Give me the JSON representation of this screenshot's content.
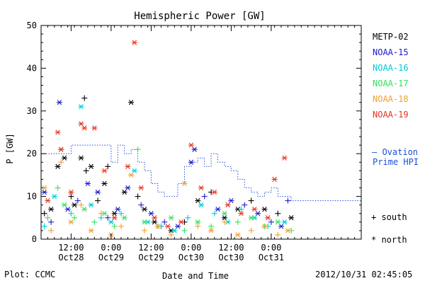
{
  "chart_data": {
    "type": "scatter",
    "title": "Hemispheric Power [GW]",
    "ylabel": "P [GW]",
    "xlabel": "Date and Time",
    "ylim": [
      0,
      50
    ],
    "yticks": [
      0,
      10,
      20,
      30,
      40,
      50
    ],
    "xlim": [
      "2012-10-27T03:00",
      "2012-10-31T03:00"
    ],
    "xticks": [
      {
        "time": "2012-10-27T12:00",
        "line1": "12:00",
        "line2": "Oct28"
      },
      {
        "time": "2012-10-28T00:00",
        "line1": "0:00",
        "line2": "Oct29"
      },
      {
        "time": "2012-10-28T12:00",
        "line1": "12:00",
        "line2": "Oct29"
      },
      {
        "time": "2012-10-29T00:00",
        "line1": "0:00",
        "line2": "Oct30"
      },
      {
        "time": "2012-10-29T12:00",
        "line1": "12:00",
        "line2": "Oct30"
      },
      {
        "time": "2012-10-30T00:00",
        "line1": "0:00",
        "line2": "Oct31"
      }
    ],
    "series": [
      {
        "name": "METP-02",
        "color": "#000000",
        "points": [
          [
            "2012-10-27T04:00",
            6,
            "+"
          ],
          [
            "2012-10-27T06:00",
            7,
            "*"
          ],
          [
            "2012-10-27T08:00",
            17,
            "*"
          ],
          [
            "2012-10-27T10:00",
            19,
            "*"
          ],
          [
            "2012-10-27T12:00",
            10,
            "+"
          ],
          [
            "2012-10-27T13:00",
            8,
            "*"
          ],
          [
            "2012-10-27T15:00",
            19,
            "*"
          ],
          [
            "2012-10-27T16:00",
            33,
            "+"
          ],
          [
            "2012-10-27T16:30",
            16,
            "+"
          ],
          [
            "2012-10-27T18:00",
            17,
            "*"
          ],
          [
            "2012-10-27T20:00",
            9,
            "+"
          ],
          [
            "2012-10-27T22:00",
            13,
            "*"
          ],
          [
            "2012-10-27T23:00",
            17,
            "+"
          ],
          [
            "2012-10-28T01:00",
            6,
            "*"
          ],
          [
            "2012-10-28T04:00",
            11,
            "*"
          ],
          [
            "2012-10-28T06:00",
            32,
            "*"
          ],
          [
            "2012-10-28T08:00",
            10,
            "+"
          ],
          [
            "2012-10-28T10:00",
            7,
            "*"
          ],
          [
            "2012-10-28T13:00",
            4,
            "*"
          ],
          [
            "2012-10-28T15:00",
            3,
            "+"
          ],
          [
            "2012-10-28T18:00",
            2,
            "*"
          ],
          [
            "2012-10-28T22:00",
            4,
            "+"
          ],
          [
            "2012-10-29T02:00",
            9,
            "*"
          ],
          [
            "2012-10-29T06:00",
            11,
            "+"
          ],
          [
            "2012-10-29T10:00",
            5,
            "*"
          ],
          [
            "2012-10-29T14:00",
            7,
            "*"
          ],
          [
            "2012-10-29T18:00",
            9,
            "+"
          ],
          [
            "2012-10-29T22:00",
            7,
            "*"
          ],
          [
            "2012-10-30T02:00",
            6,
            "+"
          ],
          [
            "2012-10-30T06:00",
            5,
            "*"
          ]
        ]
      },
      {
        "name": "NOAA-15",
        "color": "#1a1acd",
        "points": [
          [
            "2012-10-27T04:00",
            11,
            "*"
          ],
          [
            "2012-10-27T06:00",
            4,
            "+"
          ],
          [
            "2012-10-27T08:30",
            32,
            "*"
          ],
          [
            "2012-10-27T11:00",
            7,
            "*"
          ],
          [
            "2012-10-27T14:00",
            9,
            "+"
          ],
          [
            "2012-10-27T17:00",
            13,
            "*"
          ],
          [
            "2012-10-27T20:00",
            11,
            "*"
          ],
          [
            "2012-10-27T23:00",
            5,
            "+"
          ],
          [
            "2012-10-28T02:00",
            7,
            "*"
          ],
          [
            "2012-10-28T05:00",
            12,
            "*"
          ],
          [
            "2012-10-28T09:00",
            8,
            "+"
          ],
          [
            "2012-10-28T12:00",
            6,
            "*"
          ],
          [
            "2012-10-28T16:00",
            4,
            "+"
          ],
          [
            "2012-10-28T20:00",
            3,
            "*"
          ],
          [
            "2012-10-29T00:00",
            18,
            "*"
          ],
          [
            "2012-10-29T01:00",
            21,
            "*"
          ],
          [
            "2012-10-29T04:00",
            10,
            "+"
          ],
          [
            "2012-10-29T08:00",
            7,
            "*"
          ],
          [
            "2012-10-29T12:00",
            9,
            "*"
          ],
          [
            "2012-10-29T16:00",
            8,
            "+"
          ],
          [
            "2012-10-29T20:00",
            6,
            "*"
          ],
          [
            "2012-10-30T00:00",
            4,
            "+"
          ],
          [
            "2012-10-30T03:00",
            3,
            "*"
          ],
          [
            "2012-10-30T05:00",
            9,
            "+"
          ]
        ]
      },
      {
        "name": "NOAA-16",
        "color": "#00c8d8",
        "points": [
          [
            "2012-10-27T04:00",
            3,
            "+"
          ],
          [
            "2012-10-27T07:00",
            10,
            "*"
          ],
          [
            "2012-10-27T09:00",
            21,
            "*"
          ],
          [
            "2012-10-27T12:00",
            6,
            "+"
          ],
          [
            "2012-10-27T15:00",
            31,
            "*"
          ],
          [
            "2012-10-27T18:00",
            8,
            "*"
          ],
          [
            "2012-10-27T21:00",
            5,
            "+"
          ],
          [
            "2012-10-28T00:00",
            4,
            "*"
          ],
          [
            "2012-10-28T03:00",
            6,
            "+"
          ],
          [
            "2012-10-28T07:00",
            16,
            "*"
          ],
          [
            "2012-10-28T11:00",
            4,
            "*"
          ],
          [
            "2012-10-28T15:00",
            3,
            "+"
          ],
          [
            "2012-10-28T19:00",
            2,
            "*"
          ],
          [
            "2012-10-28T23:00",
            5,
            "+"
          ],
          [
            "2012-10-29T03:00",
            8,
            "*"
          ],
          [
            "2012-10-29T07:00",
            6,
            "+"
          ],
          [
            "2012-10-29T11:00",
            4,
            "*"
          ],
          [
            "2012-10-29T15:00",
            7,
            "+"
          ],
          [
            "2012-10-29T19:00",
            5,
            "*"
          ],
          [
            "2012-10-29T23:00",
            3,
            "+"
          ],
          [
            "2012-10-30T04:00",
            4,
            "*"
          ]
        ]
      },
      {
        "name": "NOAA-17",
        "color": "#33e05a",
        "points": [
          [
            "2012-10-27T05:00",
            5,
            "+"
          ],
          [
            "2012-10-27T08:00",
            12,
            "+"
          ],
          [
            "2012-10-27T10:00",
            8,
            "*"
          ],
          [
            "2012-10-27T13:00",
            5,
            "+"
          ],
          [
            "2012-10-27T16:00",
            7,
            "*"
          ],
          [
            "2012-10-27T19:00",
            4,
            "+"
          ],
          [
            "2012-10-27T22:00",
            6,
            "*"
          ],
          [
            "2012-10-28T01:00",
            3,
            "+"
          ],
          [
            "2012-10-28T04:00",
            5,
            "*"
          ],
          [
            "2012-10-28T08:00",
            21,
            "+"
          ],
          [
            "2012-10-28T10:00",
            4,
            "*"
          ],
          [
            "2012-10-28T14:00",
            3,
            "+"
          ],
          [
            "2012-10-28T18:00",
            5,
            "*"
          ],
          [
            "2012-10-28T22:00",
            2,
            "+"
          ],
          [
            "2012-10-29T02:00",
            4,
            "*"
          ],
          [
            "2012-10-29T06:00",
            3,
            "+"
          ],
          [
            "2012-10-29T10:00",
            6,
            "*"
          ],
          [
            "2012-10-29T14:00",
            4,
            "+"
          ],
          [
            "2012-10-29T18:00",
            5,
            "*"
          ],
          [
            "2012-10-29T22:00",
            3,
            "+"
          ],
          [
            "2012-10-30T02:00",
            4,
            "*"
          ],
          [
            "2012-10-30T06:00",
            2,
            "+"
          ]
        ]
      },
      {
        "name": "NOAA-18",
        "color": "#f0a030",
        "points": [
          [
            "2012-10-27T04:00",
            12,
            "*"
          ],
          [
            "2012-10-27T06:00",
            2,
            "+"
          ],
          [
            "2012-10-27T09:00",
            18,
            "+"
          ],
          [
            "2012-10-27T12:00",
            4,
            "*"
          ],
          [
            "2012-10-27T15:00",
            8,
            "+"
          ],
          [
            "2012-10-27T18:00",
            2,
            "*"
          ],
          [
            "2012-10-27T21:00",
            6,
            "+"
          ],
          [
            "2012-10-28T00:00",
            1,
            "*"
          ],
          [
            "2012-10-28T03:00",
            3,
            "+"
          ],
          [
            "2012-10-28T06:00",
            15,
            "*"
          ],
          [
            "2012-10-28T10:00",
            2,
            "+"
          ],
          [
            "2012-10-28T14:00",
            3,
            "*"
          ],
          [
            "2012-10-28T18:00",
            1,
            "+"
          ],
          [
            "2012-10-28T22:00",
            13,
            "*"
          ],
          [
            "2012-10-29T02:00",
            3,
            "+"
          ],
          [
            "2012-10-29T06:00",
            2,
            "*"
          ],
          [
            "2012-10-29T10:00",
            4,
            "+"
          ],
          [
            "2012-10-29T14:00",
            1,
            "*"
          ],
          [
            "2012-10-29T18:00",
            2,
            "+"
          ],
          [
            "2012-10-29T22:00",
            3,
            "*"
          ],
          [
            "2012-10-30T02:00",
            1,
            "+"
          ],
          [
            "2012-10-30T05:00",
            2,
            "*"
          ]
        ]
      },
      {
        "name": "NOAA-19",
        "color": "#e8321e",
        "points": [
          [
            "2012-10-27T05:00",
            9,
            "*"
          ],
          [
            "2012-10-27T08:00",
            25,
            "*"
          ],
          [
            "2012-10-27T09:00",
            21,
            "*"
          ],
          [
            "2012-10-27T12:00",
            11,
            "*"
          ],
          [
            "2012-10-27T15:00",
            27,
            "*"
          ],
          [
            "2012-10-27T16:00",
            26,
            "*"
          ],
          [
            "2012-10-27T19:00",
            26,
            "*"
          ],
          [
            "2012-10-27T22:00",
            16,
            "*"
          ],
          [
            "2012-10-28T01:00",
            5,
            "*"
          ],
          [
            "2012-10-28T05:00",
            17,
            "*"
          ],
          [
            "2012-10-28T07:00",
            46,
            "*"
          ],
          [
            "2012-10-28T09:00",
            12,
            "*"
          ],
          [
            "2012-10-28T13:00",
            5,
            "*"
          ],
          [
            "2012-10-28T17:00",
            3,
            "*"
          ],
          [
            "2012-10-28T21:00",
            4,
            "*"
          ],
          [
            "2012-10-29T00:00",
            22,
            "*"
          ],
          [
            "2012-10-29T03:00",
            12,
            "*"
          ],
          [
            "2012-10-29T07:00",
            11,
            "*"
          ],
          [
            "2012-10-29T11:00",
            8,
            "*"
          ],
          [
            "2012-10-29T15:00",
            6,
            "*"
          ],
          [
            "2012-10-29T19:00",
            7,
            "*"
          ],
          [
            "2012-10-29T23:00",
            5,
            "*"
          ],
          [
            "2012-10-30T01:00",
            14,
            "*"
          ],
          [
            "2012-10-30T04:00",
            19,
            "*"
          ]
        ]
      }
    ],
    "ovation": {
      "name": "Ovation Prime HPI",
      "label_line1": "— Ovation",
      "label_line2": "Prime HPI",
      "color": "#1a4fd8",
      "step_x": [
        "2012-10-27T03:00",
        "2012-10-27T12:00",
        "2012-10-27T20:00",
        "2012-10-28T00:00",
        "2012-10-28T02:00",
        "2012-10-28T04:00",
        "2012-10-28T06:00",
        "2012-10-28T08:00",
        "2012-10-28T10:00",
        "2012-10-28T12:00",
        "2012-10-28T14:00",
        "2012-10-28T16:00",
        "2012-10-28T20:00",
        "2012-10-28T22:00",
        "2012-10-29T00:00",
        "2012-10-29T02:00",
        "2012-10-29T04:00",
        "2012-10-29T06:00",
        "2012-10-29T08:00",
        "2012-10-29T10:00",
        "2012-10-29T12:00",
        "2012-10-29T14:00",
        "2012-10-29T16:00",
        "2012-10-29T18:00",
        "2012-10-29T20:00",
        "2012-10-29T22:00",
        "2012-10-30T00:00",
        "2012-10-30T02:00",
        "2012-10-30T04:00",
        "2012-10-30T06:00",
        "2012-10-30T08:00",
        "2012-10-30T10:00",
        "2012-10-31T03:00"
      ],
      "step_y": [
        20,
        22,
        22,
        18,
        22,
        20,
        21,
        18,
        16,
        13,
        11,
        10,
        13,
        17,
        18,
        19,
        17,
        20,
        18,
        17,
        16,
        14,
        12,
        11,
        10,
        11,
        12,
        10,
        10,
        9,
        9,
        9
      ]
    },
    "legend_symbols": [
      {
        "symbol": "+",
        "label": "south"
      },
      {
        "symbol": "*",
        "label": "north"
      }
    ],
    "grid": false,
    "legend_position": "right"
  },
  "footer": {
    "plot_credit": "Plot: CCMC",
    "timestamp": "2012/10/31 02:45:05"
  }
}
